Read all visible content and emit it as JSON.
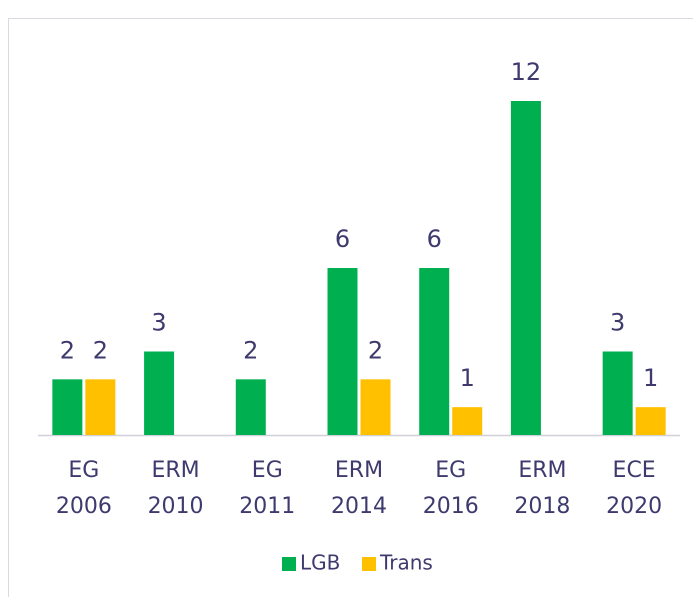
{
  "chart_data": {
    "type": "bar",
    "categories": [
      [
        "EG",
        "2006"
      ],
      [
        "ERM",
        "2010"
      ],
      [
        "EG",
        "2011"
      ],
      [
        "ERM",
        "2014"
      ],
      [
        "EG",
        "2016"
      ],
      [
        "ERM",
        "2018"
      ],
      [
        "ECE",
        "2020"
      ]
    ],
    "series": [
      {
        "name": "LGB",
        "color": "#00b050",
        "values": [
          2,
          3,
          2,
          6,
          6,
          12,
          3
        ]
      },
      {
        "name": "Trans",
        "color": "#ffc000",
        "values": [
          2,
          null,
          null,
          2,
          1,
          null,
          1
        ]
      }
    ],
    "ylim": [
      0,
      12
    ]
  }
}
